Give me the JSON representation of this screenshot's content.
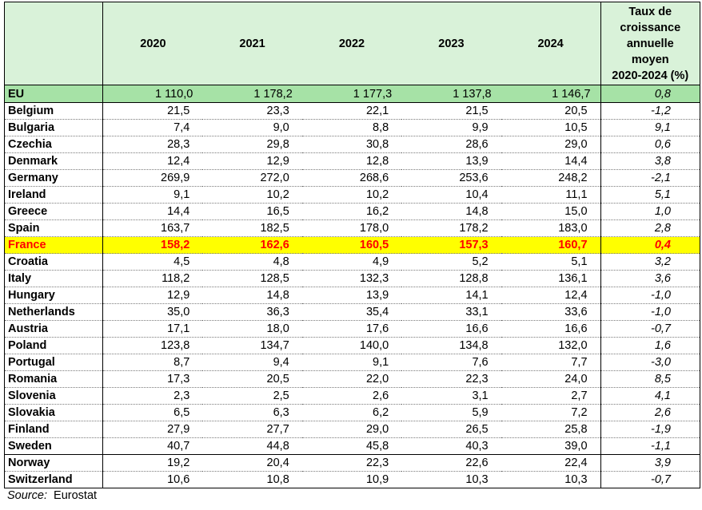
{
  "table": {
    "years": [
      "2020",
      "2021",
      "2022",
      "2023",
      "2024"
    ],
    "rate_header_lines": [
      "Taux de",
      "croissance",
      "annuelle",
      "moyen",
      "2020-2024 (%)"
    ],
    "rows": [
      {
        "name": "EU",
        "values": [
          "1 110,0",
          "1 178,2",
          "1 177,3",
          "1 137,8",
          "1 146,7"
        ],
        "rate": "0,8"
      },
      {
        "name": "Belgium",
        "values": [
          "21,5",
          "23,3",
          "22,1",
          "21,5",
          "20,5"
        ],
        "rate": "-1,2"
      },
      {
        "name": "Bulgaria",
        "values": [
          "7,4",
          "9,0",
          "8,8",
          "9,9",
          "10,5"
        ],
        "rate": "9,1"
      },
      {
        "name": "Czechia",
        "values": [
          "28,3",
          "29,8",
          "30,8",
          "28,6",
          "29,0"
        ],
        "rate": "0,6"
      },
      {
        "name": "Denmark",
        "values": [
          "12,4",
          "12,9",
          "12,8",
          "13,9",
          "14,4"
        ],
        "rate": "3,8"
      },
      {
        "name": "Germany",
        "values": [
          "269,9",
          "272,0",
          "268,6",
          "253,6",
          "248,2"
        ],
        "rate": "-2,1"
      },
      {
        "name": "Ireland",
        "values": [
          "9,1",
          "10,2",
          "10,2",
          "10,4",
          "11,1"
        ],
        "rate": "5,1"
      },
      {
        "name": "Greece",
        "values": [
          "14,4",
          "16,5",
          "16,2",
          "14,8",
          "15,0"
        ],
        "rate": "1,0"
      },
      {
        "name": "Spain",
        "values": [
          "163,7",
          "182,5",
          "178,0",
          "178,2",
          "183,0"
        ],
        "rate": "2,8"
      },
      {
        "name": "France",
        "values": [
          "158,2",
          "162,6",
          "160,5",
          "157,3",
          "160,7"
        ],
        "rate": "0,4"
      },
      {
        "name": "Croatia",
        "values": [
          "4,5",
          "4,8",
          "4,9",
          "5,2",
          "5,1"
        ],
        "rate": "3,2"
      },
      {
        "name": "Italy",
        "values": [
          "118,2",
          "128,5",
          "132,3",
          "128,8",
          "136,1"
        ],
        "rate": "3,6"
      },
      {
        "name": "Hungary",
        "values": [
          "12,9",
          "14,8",
          "13,9",
          "14,1",
          "12,4"
        ],
        "rate": "-1,0"
      },
      {
        "name": "Netherlands",
        "values": [
          "35,0",
          "36,3",
          "35,4",
          "33,1",
          "33,6"
        ],
        "rate": "-1,0"
      },
      {
        "name": "Austria",
        "values": [
          "17,1",
          "18,0",
          "17,6",
          "16,6",
          "16,6"
        ],
        "rate": "-0,7"
      },
      {
        "name": "Poland",
        "values": [
          "123,8",
          "134,7",
          "140,0",
          "134,8",
          "132,0"
        ],
        "rate": "1,6"
      },
      {
        "name": "Portugal",
        "values": [
          "8,7",
          "9,4",
          "9,1",
          "7,6",
          "7,7"
        ],
        "rate": "-3,0"
      },
      {
        "name": "Romania",
        "values": [
          "17,3",
          "20,5",
          "22,0",
          "22,3",
          "24,0"
        ],
        "rate": "8,5"
      },
      {
        "name": "Slovenia",
        "values": [
          "2,3",
          "2,5",
          "2,6",
          "3,1",
          "2,7"
        ],
        "rate": "4,1"
      },
      {
        "name": "Slovakia",
        "values": [
          "6,5",
          "6,3",
          "6,2",
          "5,9",
          "7,2"
        ],
        "rate": "2,6"
      },
      {
        "name": "Finland",
        "values": [
          "27,9",
          "27,7",
          "29,0",
          "26,5",
          "25,8"
        ],
        "rate": "-1,9"
      },
      {
        "name": "Sweden",
        "values": [
          "40,7",
          "44,8",
          "45,8",
          "40,3",
          "39,0"
        ],
        "rate": "-1,1"
      },
      {
        "name": "Norway",
        "values": [
          "19,2",
          "20,4",
          "22,3",
          "22,6",
          "22,4"
        ],
        "rate": "3,9"
      },
      {
        "name": "Switzerland",
        "values": [
          "10,6",
          "10,8",
          "10,9",
          "10,3",
          "10,3"
        ],
        "rate": "-0,7"
      }
    ]
  },
  "source": {
    "label": "Source:",
    "text": "Eurostat"
  },
  "colors": {
    "header_bg": "#d9f2d9",
    "eu_row_bg": "#a6e2a6",
    "highlight_bg": "#ffff00",
    "highlight_text": "#ff0000"
  }
}
